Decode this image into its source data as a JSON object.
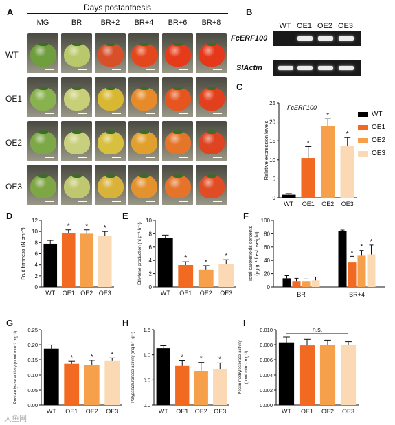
{
  "panel_labels": {
    "A": "A",
    "B": "B",
    "C": "C",
    "D": "D",
    "E": "E",
    "F": "F",
    "G": "G",
    "H": "H",
    "I": "I"
  },
  "colors": {
    "WT": "#000000",
    "OE1": "#f26a21",
    "OE2": "#f7a04b",
    "OE3": "#fbd9b4"
  },
  "panelA": {
    "header": "Days postanthesis",
    "stages": [
      "MG",
      "BR",
      "BR+2",
      "BR+4",
      "BR+6",
      "BR+8"
    ],
    "lines": [
      "WT",
      "OE1",
      "OE2",
      "OE3"
    ],
    "fruit_colors": [
      [
        "#6f9e3c",
        "#b9c86a",
        "#d8502a",
        "#e4471e",
        "#e63b1a",
        "#e5381a"
      ],
      [
        "#88b24d",
        "#c8cf78",
        "#d8b832",
        "#e78a2a",
        "#e6551f",
        "#e2401c"
      ],
      [
        "#7da847",
        "#c9d07d",
        "#d6c03e",
        "#e1a02e",
        "#e6752a",
        "#df4422"
      ],
      [
        "#7ea645",
        "#c0c86f",
        "#d9b23a",
        "#e4922e",
        "#e5742a",
        "#e04c24"
      ]
    ]
  },
  "panelB": {
    "columns": [
      "WT",
      "OE1",
      "OE2",
      "OE3"
    ],
    "genes": [
      "FcERF100",
      "SlActin"
    ],
    "bands": [
      [
        false,
        true,
        true,
        true
      ],
      [
        true,
        true,
        true,
        true
      ]
    ]
  },
  "chart_data": [
    {
      "id": "C",
      "type": "bar",
      "title": "FcERF100",
      "categories": [
        "WT",
        "OE1",
        "OE2",
        "OE3"
      ],
      "values": [
        0.8,
        10.5,
        19.0,
        13.7
      ],
      "errors": [
        0.3,
        3.0,
        1.8,
        2.2
      ],
      "significant": [
        false,
        true,
        true,
        true
      ],
      "ylabel": "Relative expression levels",
      "ylim": [
        0,
        25
      ],
      "yticks": [
        "0",
        "5",
        "10",
        "15",
        "20",
        "25"
      ],
      "legend": [
        "WT",
        "OE1",
        "OE2",
        "OE3"
      ]
    },
    {
      "id": "D",
      "type": "bar",
      "categories": [
        "WT",
        "OE1",
        "OE2",
        "OE3"
      ],
      "values": [
        7.8,
        9.7,
        9.6,
        9.2
      ],
      "errors": [
        0.6,
        0.6,
        0.7,
        0.8
      ],
      "significant": [
        false,
        true,
        true,
        true
      ],
      "ylabel": "Fruit firmness (N cm⁻²)",
      "ylim": [
        0,
        12
      ],
      "yticks": [
        "0",
        "2",
        "4",
        "6",
        "8",
        "10",
        "12"
      ]
    },
    {
      "id": "E",
      "type": "bar",
      "categories": [
        "WT",
        "OE1",
        "OE2",
        "OE3"
      ],
      "values": [
        7.4,
        3.3,
        2.6,
        3.4
      ],
      "errors": [
        0.4,
        0.5,
        0.6,
        0.7
      ],
      "significant": [
        false,
        true,
        true,
        true
      ],
      "ylabel": "Ethylene production (nl g⁻¹ h⁻¹)",
      "ylim": [
        0,
        10
      ],
      "yticks": [
        "0",
        "2",
        "4",
        "6",
        "8",
        "10"
      ]
    },
    {
      "id": "F",
      "type": "bar",
      "groups": [
        "BR",
        "BR+4"
      ],
      "series": [
        {
          "name": "WT",
          "values": [
            13,
            84
          ],
          "errors": [
            4,
            1.5
          ],
          "significant": [
            false,
            false
          ]
        },
        {
          "name": "OE1",
          "values": [
            9,
            37
          ],
          "errors": [
            4,
            9
          ],
          "significant": [
            false,
            true
          ]
        },
        {
          "name": "OE2",
          "values": [
            9,
            47
          ],
          "errors": [
            3,
            8
          ],
          "significant": [
            false,
            true
          ]
        },
        {
          "name": "OE3",
          "values": [
            10,
            49
          ],
          "errors": [
            5,
            14
          ],
          "significant": [
            false,
            true
          ]
        }
      ],
      "ylabel": "Total carotenoids contents",
      "ylabel2": "(μg g⁻¹ fresh weight)",
      "ylim": [
        0,
        100
      ],
      "yticks": [
        "0",
        "20",
        "40",
        "60",
        "80",
        "100"
      ]
    },
    {
      "id": "G",
      "type": "bar",
      "categories": [
        "WT",
        "OE1",
        "OE2",
        "OE3"
      ],
      "values": [
        0.187,
        0.137,
        0.133,
        0.146
      ],
      "errors": [
        0.012,
        0.008,
        0.015,
        0.01
      ],
      "significant": [
        false,
        true,
        true,
        true
      ],
      "ylabel": "Pectate lyase activity (nmol min⁻¹ mg⁻¹)",
      "ylim": [
        0,
        0.25
      ],
      "yticks": [
        "0.00",
        "0.05",
        "0.10",
        "0.15",
        "0.20",
        "0.25"
      ]
    },
    {
      "id": "H",
      "type": "bar",
      "categories": [
        "WT",
        "OE1",
        "OE2",
        "OE3"
      ],
      "values": [
        1.13,
        0.78,
        0.68,
        0.72
      ],
      "errors": [
        0.05,
        0.1,
        0.17,
        0.12
      ],
      "significant": [
        false,
        true,
        true,
        true
      ],
      "ylabel": "Polygalacturonase activity (mg h⁻¹ g⁻¹)",
      "ylim": [
        0,
        1.5
      ],
      "yticks": [
        "0.0",
        "0.5",
        "1.0",
        "1.5"
      ]
    },
    {
      "id": "I",
      "type": "bar",
      "categories": [
        "WT",
        "OE1",
        "OE2",
        "OE3"
      ],
      "values": [
        0.0083,
        0.0079,
        0.008,
        0.008
      ],
      "errors": [
        0.0007,
        0.0008,
        0.0006,
        0.0004
      ],
      "significant": [
        false,
        false,
        false,
        false
      ],
      "annotation": "n.s.",
      "ylabel": "Pectin methylesterase activity",
      "ylabel2": "(μmol min⁻¹ mg⁻¹)",
      "ylim": [
        0,
        0.01
      ],
      "yticks": [
        "0.000",
        "0.002",
        "0.004",
        "0.006",
        "0.008",
        "0.010"
      ]
    }
  ],
  "sig_mark": "*",
  "watermark": "大鱼网"
}
